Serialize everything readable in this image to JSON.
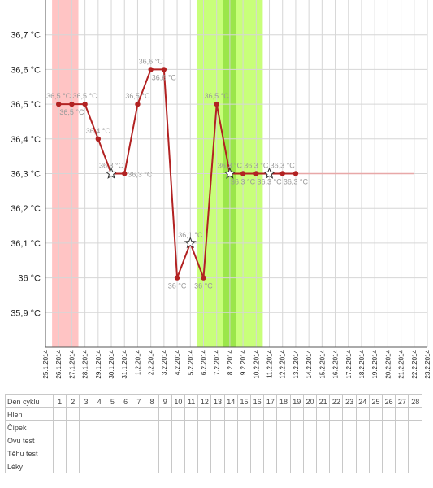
{
  "chart_data": {
    "type": "line",
    "y_tick_labels": [
      "35,9 °C",
      "36 °C",
      "36,1 °C",
      "36,2 °C",
      "36,3 °C",
      "36,4 °C",
      "36,5 °C",
      "36,6 °C",
      "36,7 °C"
    ],
    "y_ticks": [
      35.9,
      36.0,
      36.1,
      36.2,
      36.3,
      36.4,
      36.5,
      36.6,
      36.7
    ],
    "ylim": [
      35.8,
      36.8
    ],
    "x_labels": [
      "25.1.2014",
      "26.1.2014",
      "27.1.2014",
      "28.1.2014",
      "29.1.2014",
      "30.1.2014",
      "31.1.2014",
      "1.2.2014",
      "2.2.2014",
      "3.2.2014",
      "4.2.2014",
      "5.2.2014",
      "6.2.2014",
      "7.2.2014",
      "8.2.2014",
      "9.2.2014",
      "10.2.2014",
      "11.2.2014",
      "12.2.2014",
      "13.2.2014",
      "14.2.2014",
      "15.2.2014",
      "16.2.2014",
      "17.2.2014",
      "18.2.2014",
      "19.2.2014",
      "20.2.2014",
      "21.2.2014",
      "22.2.2014",
      "23.2.2014"
    ],
    "grid": true,
    "bands": [
      {
        "from_day": 1,
        "to_day": 2,
        "color": "#ffc4c4"
      },
      {
        "from_day": 12,
        "to_day": 16,
        "color": "#c8ff7a"
      },
      {
        "from_day": 14,
        "to_day": 14,
        "color": "#9be64a"
      }
    ],
    "line_color": "#b22222",
    "flat_line": {
      "from_day": 19,
      "to_day": 28,
      "y": 36.3,
      "color": "#e8a8a8"
    },
    "points": [
      {
        "day": 1,
        "y": 36.5,
        "label": "36,5 °C",
        "marker": "dot",
        "label_pos": "above"
      },
      {
        "day": 2,
        "y": 36.5,
        "label": "36,5 °C",
        "marker": "dot",
        "label_pos": "below"
      },
      {
        "day": 3,
        "y": 36.5,
        "label": "36,5 °C",
        "marker": "dot",
        "label_pos": "above"
      },
      {
        "day": 4,
        "y": 36.4,
        "label": "36,4 °C",
        "marker": "dot",
        "label_pos": "above"
      },
      {
        "day": 5,
        "y": 36.3,
        "label": "36,3 °C",
        "marker": "star",
        "label_pos": "above"
      },
      {
        "day": 6,
        "y": 36.3,
        "label": "36,3 °C",
        "marker": "dot",
        "label_pos": "right"
      },
      {
        "day": 7,
        "y": 36.5,
        "label": "36,5 °C",
        "marker": "dot",
        "label_pos": "above"
      },
      {
        "day": 8,
        "y": 36.6,
        "label": "36,6 °C",
        "marker": "dot",
        "label_pos": "above"
      },
      {
        "day": 9,
        "y": 36.6,
        "label": "36,6 °C",
        "marker": "dot",
        "label_pos": "below"
      },
      {
        "day": 10,
        "y": 36.0,
        "label": "36 °C",
        "marker": "dot",
        "label_pos": "below"
      },
      {
        "day": 11,
        "y": 36.1,
        "label": "36,1 °C",
        "marker": "star",
        "label_pos": "above"
      },
      {
        "day": 12,
        "y": 36.0,
        "label": "36 °C",
        "marker": "dot",
        "label_pos": "below"
      },
      {
        "day": 13,
        "y": 36.5,
        "label": "36,5 °C",
        "marker": "dot",
        "label_pos": "above"
      },
      {
        "day": 14,
        "y": 36.3,
        "label": "36,3 °C",
        "marker": "star",
        "label_pos": "above"
      },
      {
        "day": 15,
        "y": 36.3,
        "label": "36,3 °C",
        "marker": "dot",
        "label_pos": "below"
      },
      {
        "day": 16,
        "y": 36.3,
        "label": "36,3 °C",
        "marker": "dot",
        "label_pos": "above"
      },
      {
        "day": 17,
        "y": 36.3,
        "label": "36,3 °C",
        "marker": "star",
        "label_pos": "below"
      },
      {
        "day": 18,
        "y": 36.3,
        "label": "36,3 °C",
        "marker": "dot",
        "label_pos": "above"
      },
      {
        "day": 19,
        "y": 36.3,
        "label": "36,3 °C",
        "marker": "dot",
        "label_pos": "below"
      }
    ]
  },
  "table": {
    "row_labels": [
      "Den cyklu",
      "Hlen",
      "Čípek",
      "Ovu test",
      "Těhu test",
      "Léky"
    ],
    "days": [
      "1",
      "2",
      "3",
      "4",
      "5",
      "6",
      "7",
      "8",
      "9",
      "10",
      "11",
      "12",
      "13",
      "14",
      "15",
      "16",
      "17",
      "18",
      "19",
      "20",
      "21",
      "22",
      "23",
      "24",
      "25",
      "26",
      "27",
      "28"
    ]
  }
}
